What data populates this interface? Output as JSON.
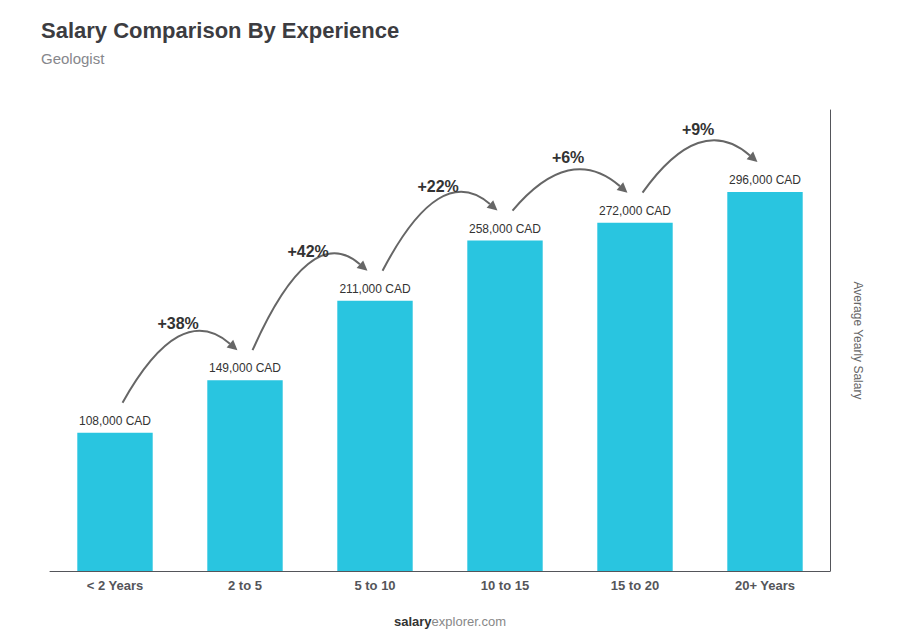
{
  "chart_data": {
    "type": "bar",
    "title": "Salary Comparison By Experience",
    "subtitle": "Geologist",
    "ylabel": "Average Yearly Salary",
    "footer": [
      "salary",
      "explorer.com"
    ],
    "categories": [
      "< 2 Years",
      "2 to 5",
      "5 to 10",
      "10 to 15",
      "15 to 20",
      "20+ Years"
    ],
    "values": [
      108000,
      149000,
      211000,
      258000,
      272000,
      296000
    ],
    "value_labels": [
      "108,000 CAD",
      "149,000 CAD",
      "211,000 CAD",
      "258,000 CAD",
      "272,000 CAD",
      "296,000 CAD"
    ],
    "data_labels": true,
    "annotations": [
      "+38%",
      "+42%",
      "+22%",
      "+6%",
      "+9%"
    ],
    "color": "#29c5e0",
    "ylim": [
      0,
      360000
    ],
    "tick_labels": "x",
    "grid": false
  }
}
